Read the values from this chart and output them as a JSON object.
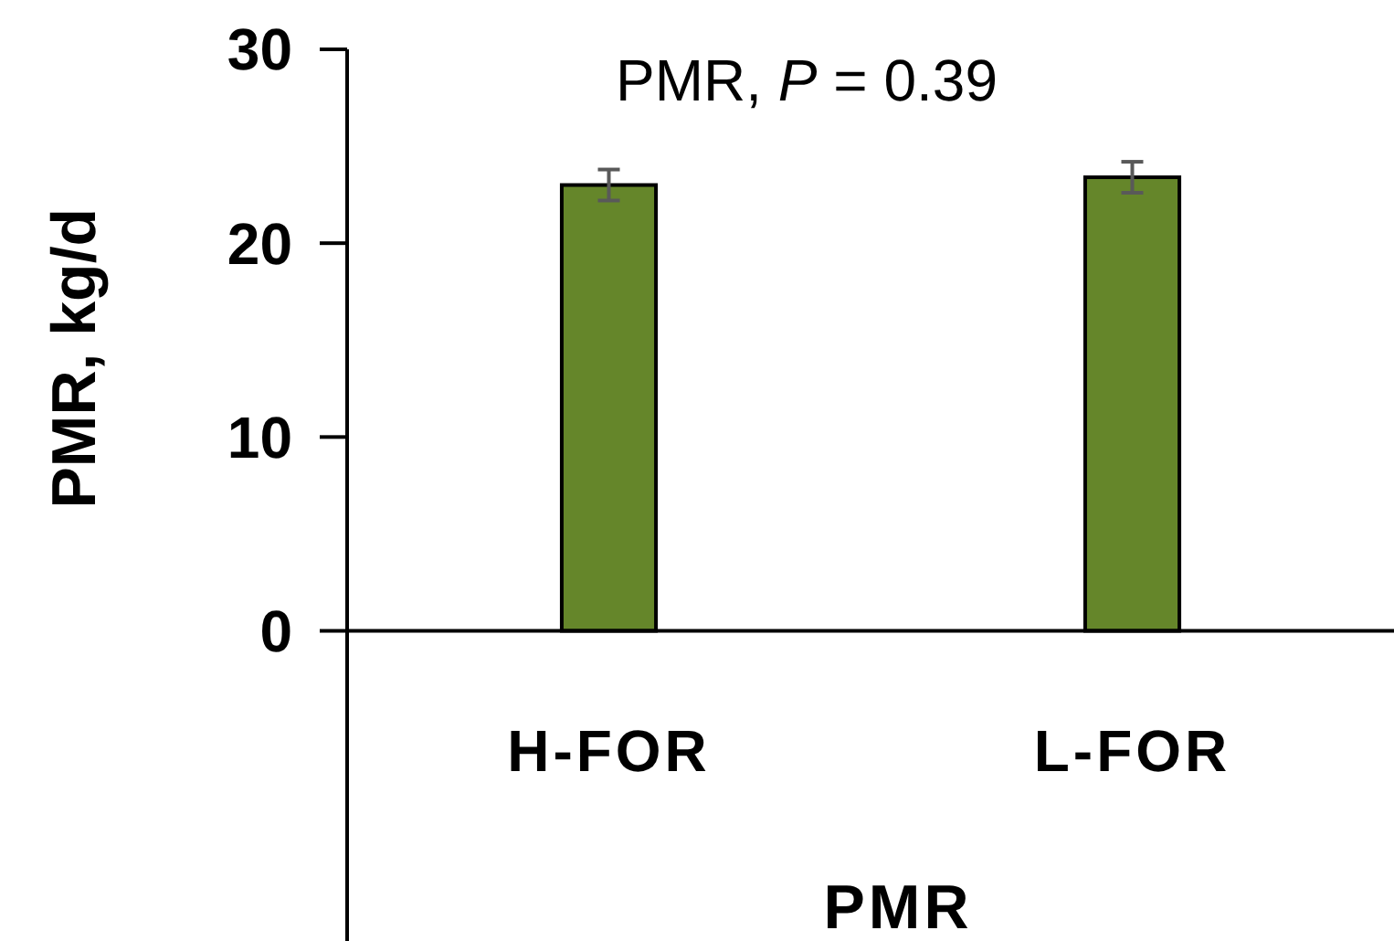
{
  "chart_data": {
    "type": "bar",
    "xlabel": "PMR",
    "ylabel": "PMR, kg/d",
    "annotations": [
      "PMR, P = 0.39"
    ],
    "categories": [
      "H-FOR",
      "L-FOR"
    ],
    "values": [
      23.0,
      23.4
    ],
    "errors": [
      0.8,
      0.8
    ],
    "color": "#65862a",
    "ylim": [
      -16,
      30
    ],
    "yticks": [
      0,
      10,
      20,
      30
    ],
    "grid": false
  }
}
